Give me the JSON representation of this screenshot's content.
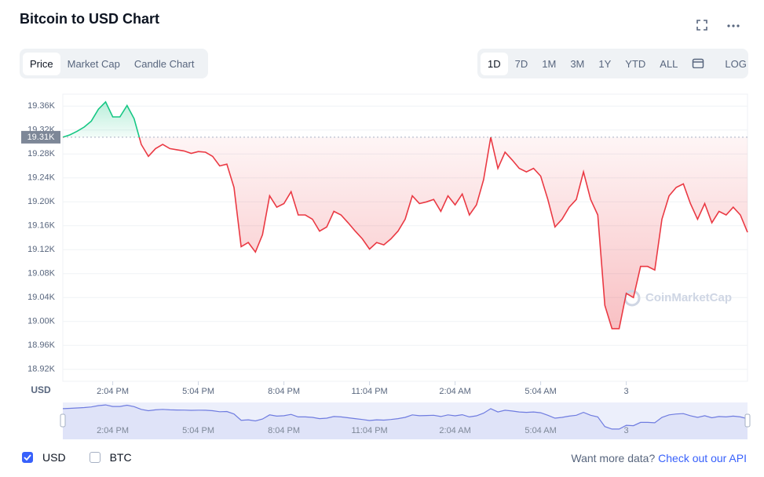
{
  "header": {
    "title": "Bitcoin to USD Chart"
  },
  "tabs": [
    "Price",
    "Market Cap",
    "Candle Chart"
  ],
  "ranges": [
    "1D",
    "7D",
    "1M",
    "3M",
    "1Y",
    "YTD",
    "ALL"
  ],
  "log_label": "LOG",
  "chart_data": {
    "type": "line",
    "y_axis_label": "USD",
    "watermark": "CoinMarketCap",
    "colors": {
      "up": "#16c784",
      "down": "#ea3943",
      "navigator": "#6f7ce0"
    },
    "grid": true,
    "ylim": [
      18900,
      19380
    ],
    "yticks": [
      {
        "value": 18920,
        "label": "18.92K"
      },
      {
        "value": 18960,
        "label": "18.96K"
      },
      {
        "value": 19000,
        "label": "19.00K"
      },
      {
        "value": 19040,
        "label": "19.04K"
      },
      {
        "value": 19080,
        "label": "19.08K"
      },
      {
        "value": 19120,
        "label": "19.12K"
      },
      {
        "value": 19160,
        "label": "19.16K"
      },
      {
        "value": 19200,
        "label": "19.20K"
      },
      {
        "value": 19240,
        "label": "19.24K"
      },
      {
        "value": 19280,
        "label": "19.28K"
      },
      {
        "value": 19320,
        "label": "19.32K"
      },
      {
        "value": 19360,
        "label": "19.36K"
      }
    ],
    "reference": {
      "value": 19308,
      "label": "19.31K"
    },
    "categories": [
      null,
      null,
      null,
      null,
      null,
      null,
      null,
      "2:04 PM",
      null,
      null,
      null,
      null,
      null,
      null,
      null,
      null,
      null,
      null,
      null,
      "5:04 PM",
      null,
      null,
      null,
      null,
      null,
      null,
      null,
      null,
      null,
      null,
      null,
      "8:04 PM",
      null,
      null,
      null,
      null,
      null,
      null,
      null,
      null,
      null,
      null,
      null,
      "11:04 PM",
      null,
      null,
      null,
      null,
      null,
      null,
      null,
      null,
      null,
      null,
      null,
      "2:04 AM",
      null,
      null,
      null,
      null,
      null,
      null,
      null,
      null,
      null,
      null,
      null,
      "5:04 AM",
      null,
      null,
      null,
      null,
      null,
      null,
      null,
      null,
      null,
      null,
      null,
      "3",
      null,
      null,
      null,
      null,
      null,
      null,
      null,
      null,
      null,
      null,
      null,
      null,
      null,
      null,
      null,
      null,
      null
    ],
    "values": [
      19308,
      19312,
      19318,
      19325,
      19335,
      19355,
      19367,
      19342,
      19342,
      19361,
      19339,
      19296,
      19276,
      19289,
      19296,
      19289,
      19287,
      19285,
      19281,
      19284,
      19283,
      19276,
      19260,
      19263,
      19224,
      19125,
      19132,
      19116,
      19145,
      19210,
      19191,
      19197,
      19217,
      19178,
      19178,
      19171,
      19151,
      19158,
      19184,
      19178,
      19165,
      19151,
      19138,
      19121,
      19132,
      19128,
      19138,
      19151,
      19171,
      19210,
      19197,
      19200,
      19204,
      19184,
      19210,
      19195,
      19213,
      19178,
      19195,
      19237,
      19308,
      19256,
      19283,
      19270,
      19256,
      19250,
      19256,
      19243,
      19204,
      19158,
      19171,
      19191,
      19204,
      19250,
      19204,
      19178,
      19027,
      18988,
      18988,
      19047,
      19040,
      19092,
      19092,
      19086,
      19171,
      19210,
      19224,
      19230,
      19197,
      19171,
      19197,
      19165,
      19184,
      19178,
      19191,
      19178,
      19149
    ]
  },
  "footer": {
    "currencies": [
      "USD",
      "BTC"
    ],
    "prompt": "Want more data?",
    "link": "Check out our API"
  }
}
